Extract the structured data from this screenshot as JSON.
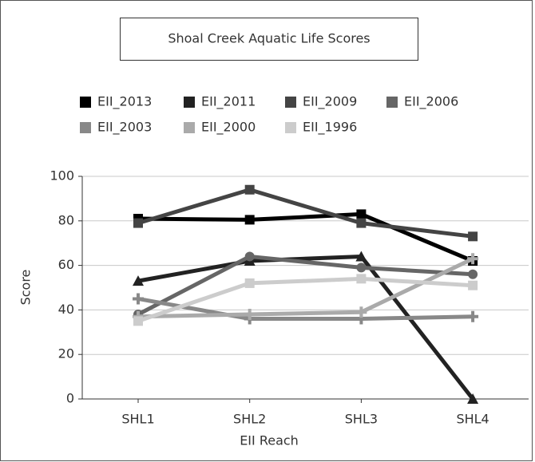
{
  "chart_data": {
    "type": "line",
    "title": "Shoal Creek Aquatic Life Scores",
    "x_label": "EII Reach",
    "y_label": "Score",
    "categories": [
      "SHL1",
      "SHL2",
      "SHL3",
      "SHL4"
    ],
    "series": [
      {
        "name": "EII_2013",
        "color": "#000000",
        "values": [
          81,
          80.5,
          83,
          62
        ]
      },
      {
        "name": "EII_2011",
        "color": "#222222",
        "values": [
          53,
          62,
          64,
          0
        ]
      },
      {
        "name": "EII_2009",
        "color": "#444444",
        "values": [
          79,
          94,
          79,
          73
        ]
      },
      {
        "name": "EII_2006",
        "color": "#666666",
        "values": [
          38,
          64,
          59,
          56
        ]
      },
      {
        "name": "EII_2003",
        "color": "#888888",
        "values": [
          45,
          36,
          36,
          37
        ]
      },
      {
        "name": "EII_2000",
        "color": "#aaaaaa",
        "values": [
          37,
          38,
          39,
          63
        ]
      },
      {
        "name": "EII_1996",
        "color": "#cccccc",
        "values": [
          35,
          52,
          54,
          51
        ]
      }
    ],
    "ylim": [
      0,
      100
    ],
    "yticks": [
      0,
      20,
      40,
      60,
      80,
      100
    ],
    "grid": true
  }
}
